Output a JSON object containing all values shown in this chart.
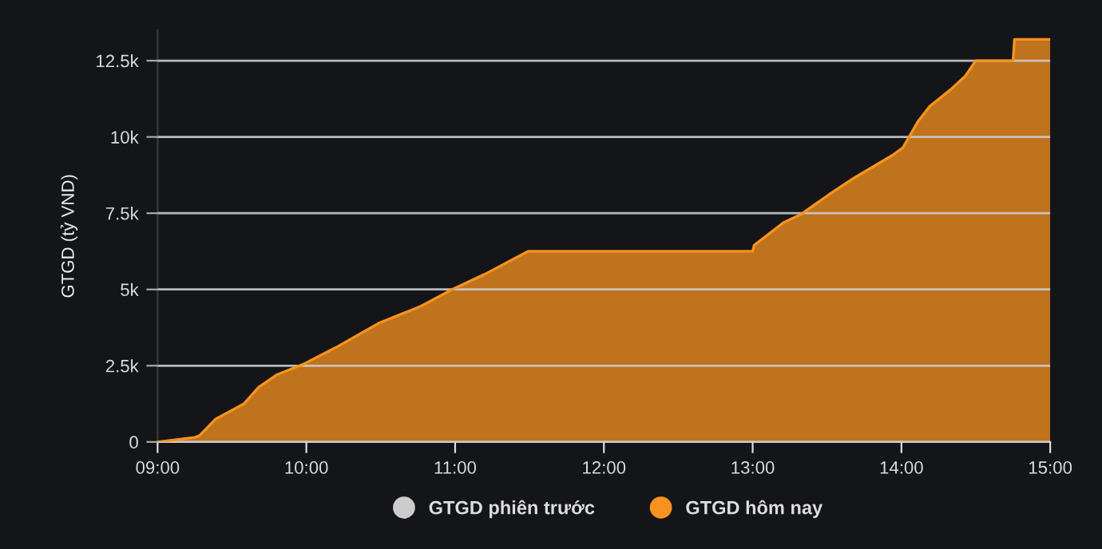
{
  "chart_data": {
    "type": "area",
    "ylabel": "GTGD (tỷ VND)",
    "x": [
      9.0,
      9.25,
      9.28,
      9.39,
      9.58,
      9.68,
      9.8,
      9.98,
      10.2,
      10.49,
      10.77,
      10.98,
      11.2,
      11.49,
      13.0,
      13.01,
      13.21,
      13.32,
      13.51,
      13.68,
      13.94,
      14.01,
      14.11,
      14.19,
      14.33,
      14.43,
      14.5,
      14.75,
      14.76,
      15.0
    ],
    "series": [
      {
        "name": "GTGD phiên trước",
        "color": "#cccccc",
        "values": [
          null,
          null,
          null,
          null,
          null,
          null,
          null,
          null,
          null,
          null,
          null,
          null,
          null,
          null,
          null,
          null,
          null,
          null,
          null,
          null,
          null,
          null,
          null,
          null,
          null,
          null,
          null,
          null,
          null,
          null
        ]
      },
      {
        "name": "GTGD hôm nay",
        "color": "#f7931e",
        "values": [
          0,
          150,
          200,
          750,
          1250,
          1800,
          2200,
          2550,
          3100,
          3900,
          4450,
          5000,
          5500,
          6250,
          6250,
          6450,
          7200,
          7450,
          8100,
          8650,
          9400,
          9650,
          10500,
          11000,
          11550,
          12000,
          12500,
          12500,
          13200,
          13200
        ]
      }
    ],
    "xlim": [
      9.0,
      15.0
    ],
    "xticks": [
      {
        "value": 9,
        "label": "09:00"
      },
      {
        "value": 10,
        "label": "10:00"
      },
      {
        "value": 11,
        "label": "11:00"
      },
      {
        "value": 12,
        "label": "12:00"
      },
      {
        "value": 13,
        "label": "13:00"
      },
      {
        "value": 14,
        "label": "14:00"
      },
      {
        "value": 15,
        "label": "15:00"
      }
    ],
    "yticks": [
      0,
      {
        "value": 2500,
        "label": "2.5k"
      },
      {
        "value": 5000,
        "label": "5k"
      },
      {
        "value": 7500,
        "label": "7.5k"
      },
      {
        "value": 10000,
        "label": "10k"
      },
      {
        "value": 12500,
        "label": "12.5k"
      }
    ],
    "ylim": [
      0,
      13500
    ],
    "grid": "y",
    "legend": "bottom"
  }
}
